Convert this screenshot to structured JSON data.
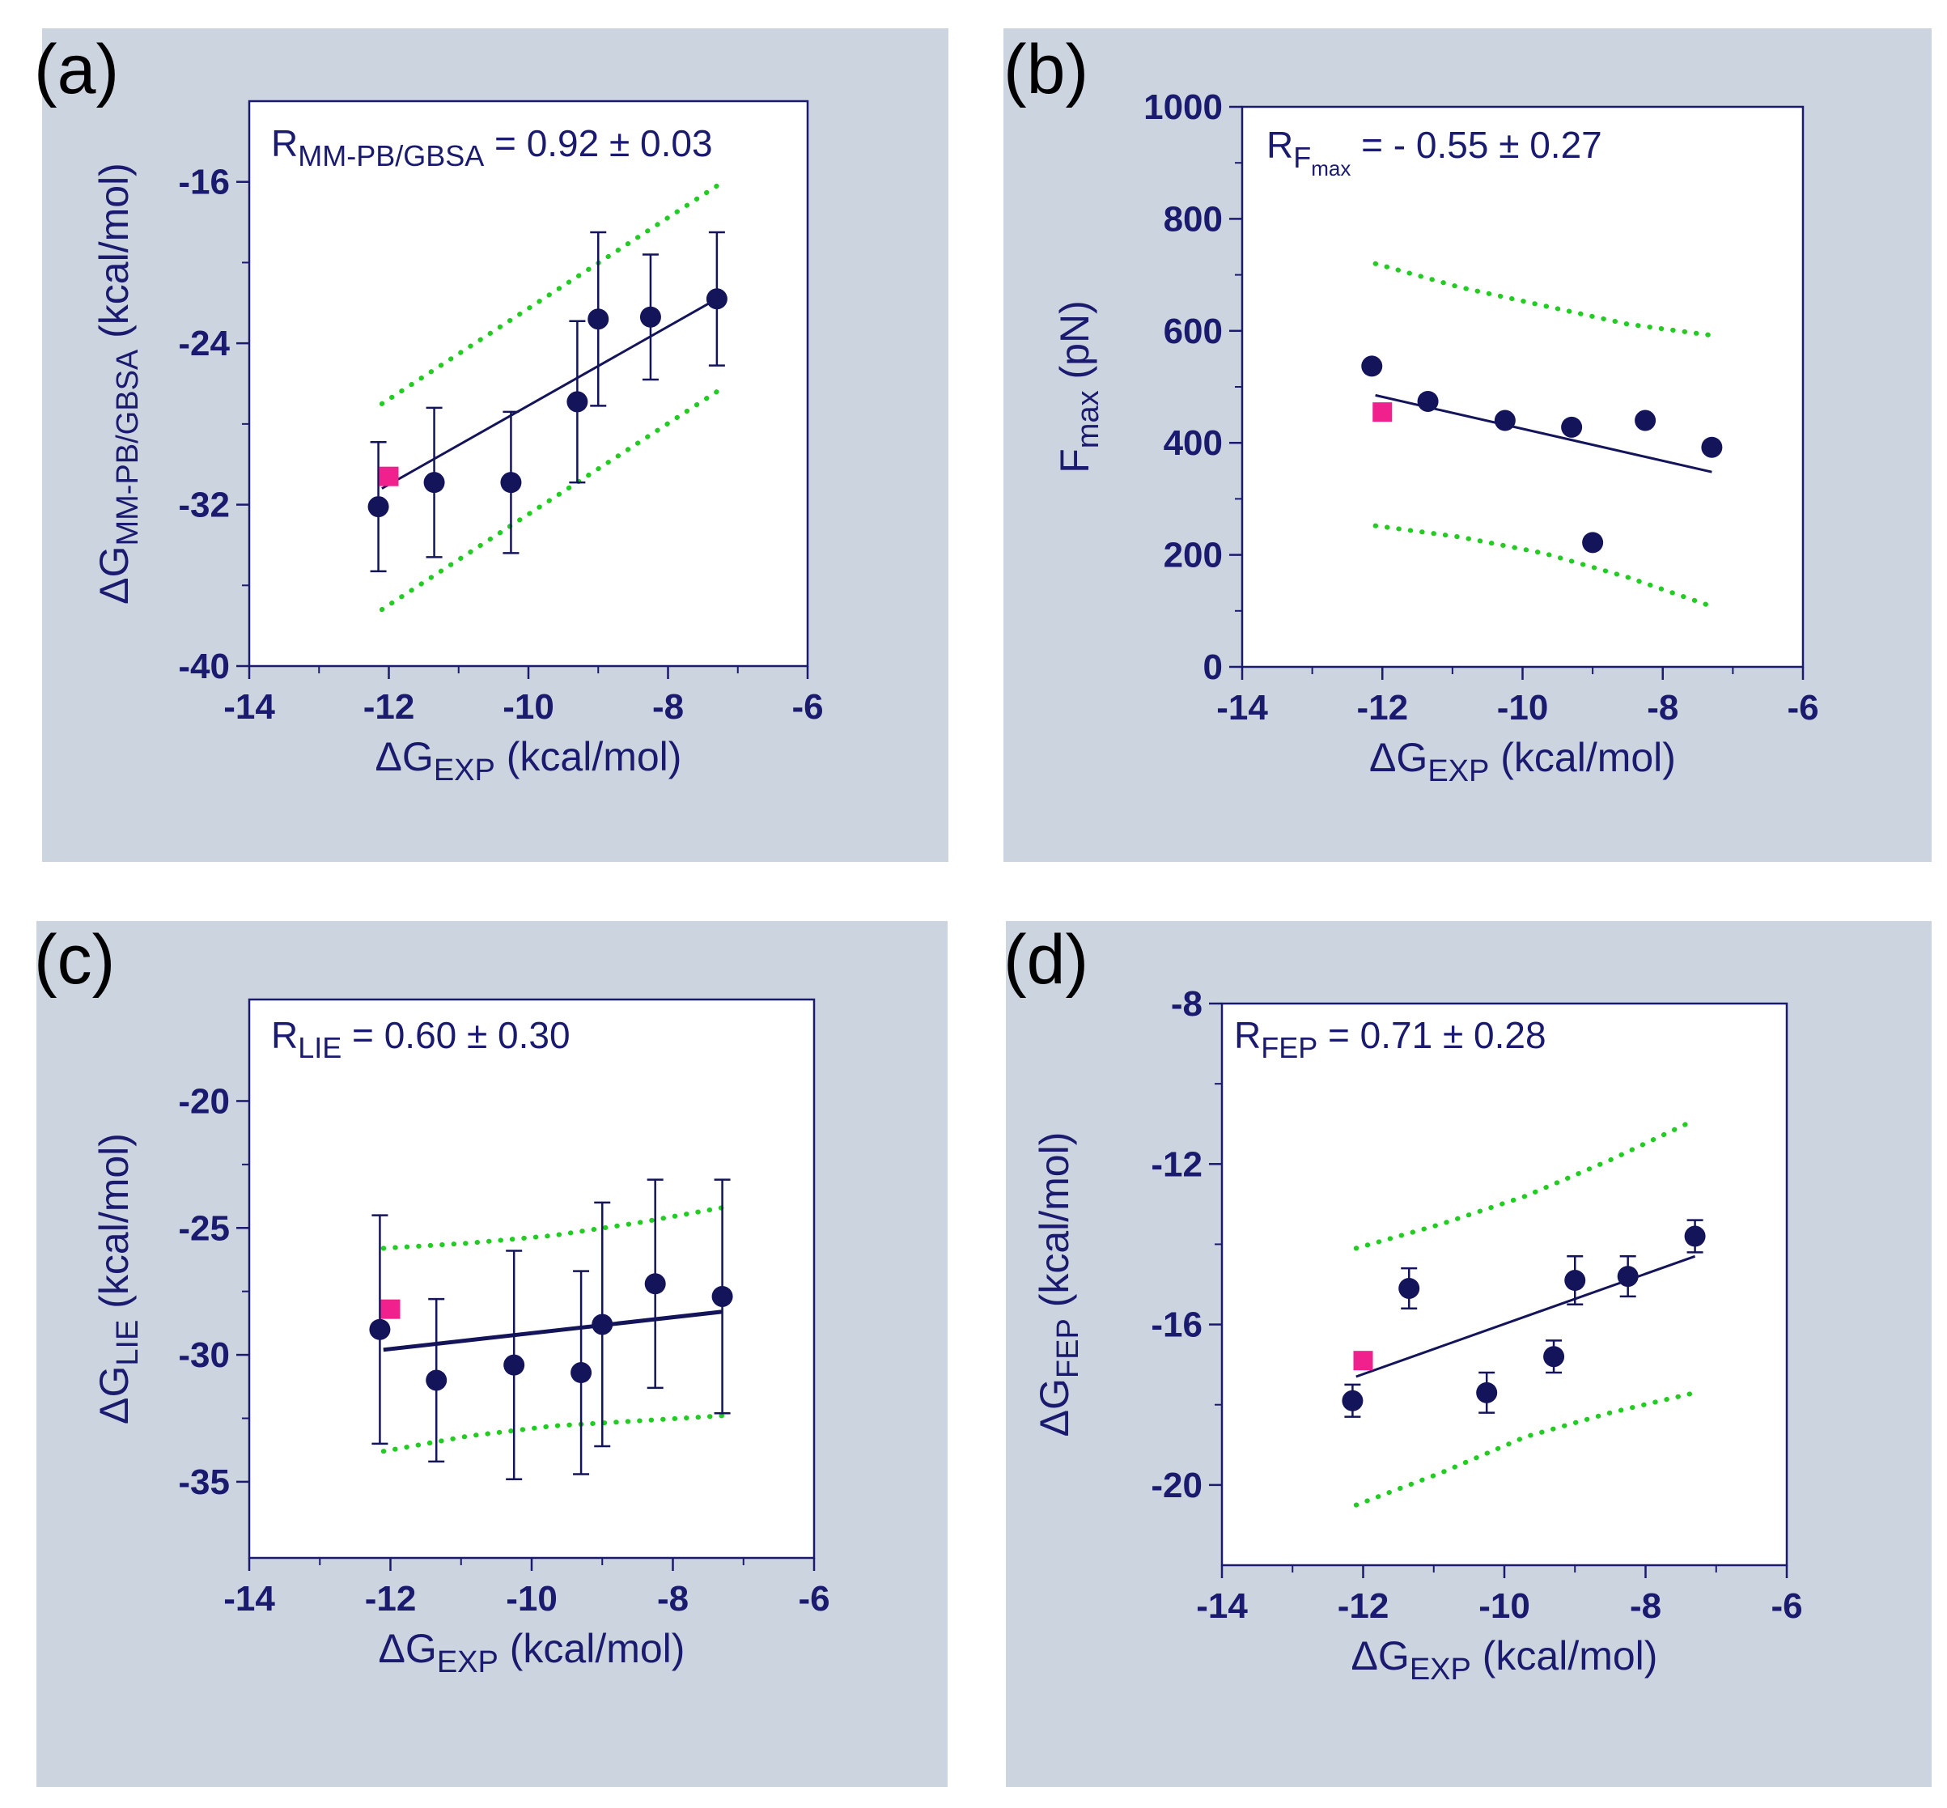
{
  "colors": {
    "panel_bg": "#ccd4e0",
    "plot_bg": "#ffffff",
    "axis": "#1a1a6e",
    "point": "#14145a",
    "highlight": "#f0208c",
    "band": "#22cc22"
  },
  "chart_data": [
    {
      "type": "scatter",
      "panel_label": "(a)",
      "xlabel": {
        "main": "ΔG",
        "sub": "EXP",
        "rest": " (kcal/mol)"
      },
      "ylabel": {
        "main": "ΔG",
        "sub": "MM-PB/GBSA",
        "rest": " (kcal/mol)"
      },
      "xlim": [
        -14,
        -6
      ],
      "ylim": [
        -40,
        -12
      ],
      "xticks": [
        -14,
        -12,
        -10,
        -8,
        -6
      ],
      "xtick_labels": [
        "-14",
        "-12",
        "-10",
        "-8",
        "-6"
      ],
      "yticks": [
        -40,
        -32,
        -24,
        -16
      ],
      "ytick_labels": [
        "-40",
        "-32",
        "-24",
        "-16"
      ],
      "annotation": {
        "main": "R",
        "sub": "MM-PB/GBSA",
        "rest": " = 0.92  ± 0.03"
      },
      "points": [
        {
          "x": -12.15,
          "y": -32.1,
          "err": 3.2
        },
        {
          "x": -11.35,
          "y": -30.9,
          "err": 3.7
        },
        {
          "x": -10.25,
          "y": -30.9,
          "err": 3.5
        },
        {
          "x": -9.3,
          "y": -26.9,
          "err": 4.0
        },
        {
          "x": -9.0,
          "y": -22.8,
          "err": 4.3
        },
        {
          "x": -8.25,
          "y": -22.7,
          "err": 3.1
        },
        {
          "x": -7.3,
          "y": -21.8,
          "err": 3.3
        }
      ],
      "highlight_point": {
        "x": -12.0,
        "y": -30.6
      },
      "fit_line": {
        "x": [
          -12.1,
          -7.3
        ],
        "y": [
          -31.2,
          -21.8
        ]
      },
      "band_upper": {
        "x": [
          -12.1,
          -7.3
        ],
        "y": [
          -27.0,
          -16.2
        ]
      },
      "band_lower": {
        "x": [
          -12.1,
          -7.3
        ],
        "y": [
          -37.2,
          -26.4
        ]
      }
    },
    {
      "type": "scatter",
      "panel_label": "(b)",
      "xlabel": {
        "main": "ΔG",
        "sub": "EXP",
        "rest": " (kcal/mol)"
      },
      "ylabel": {
        "main": "F",
        "sub": "max",
        "rest": " (pN)"
      },
      "xlim": [
        -14,
        -6
      ],
      "ylim": [
        0,
        1000
      ],
      "xticks": [
        -14,
        -12,
        -10,
        -8,
        -6
      ],
      "xtick_labels": [
        "-14",
        "-12",
        "-10",
        "-8",
        "-6"
      ],
      "yticks": [
        0,
        200,
        400,
        600,
        800,
        1000
      ],
      "ytick_labels": [
        "0",
        "200",
        "400",
        "600",
        "800",
        "1000"
      ],
      "annotation": {
        "main": "R",
        "sub": "F",
        "subsub": "max",
        "rest": " = - 0.55  ± 0.27"
      },
      "points": [
        {
          "x": -12.15,
          "y": 537
        },
        {
          "x": -11.35,
          "y": 474
        },
        {
          "x": -10.25,
          "y": 440
        },
        {
          "x": -9.3,
          "y": 428
        },
        {
          "x": -9.0,
          "y": 222
        },
        {
          "x": -8.25,
          "y": 440
        },
        {
          "x": -7.3,
          "y": 392
        }
      ],
      "highlight_point": {
        "x": -12.0,
        "y": 455
      },
      "fit_line": {
        "x": [
          -12.1,
          -7.3
        ],
        "y": [
          485,
          348
        ]
      },
      "band_upper": {
        "x": [
          -12.1,
          -10.9,
          -9.7,
          -8.5,
          -7.3
        ],
        "y": [
          720,
          678,
          645,
          612,
          592
        ]
      },
      "band_lower": {
        "x": [
          -12.1,
          -10.9,
          -9.7,
          -8.5,
          -7.3
        ],
        "y": [
          252,
          232,
          203,
          160,
          108
        ]
      }
    },
    {
      "type": "scatter",
      "panel_label": "(c)",
      "xlabel": {
        "main": "ΔG",
        "sub": "EXP",
        "rest": " (kcal/mol)"
      },
      "ylabel": {
        "main": "ΔG",
        "sub": "LIE",
        "rest": " (kcal/mol)"
      },
      "xlim": [
        -14,
        -6
      ],
      "ylim": [
        -38,
        -16
      ],
      "xticks": [
        -14,
        -12,
        -10,
        -8,
        -6
      ],
      "xtick_labels": [
        "-14",
        "-12",
        "-10",
        "-8",
        "-6"
      ],
      "yticks": [
        -35,
        -30,
        -25,
        -20
      ],
      "ytick_labels": [
        "-35",
        "-30",
        "-25",
        "-20"
      ],
      "annotation": {
        "main": "R",
        "sub": "LIE",
        "rest": " = 0.60  ± 0.30"
      },
      "points": [
        {
          "x": -12.15,
          "y": -29.0,
          "err": 4.5
        },
        {
          "x": -11.35,
          "y": -31.0,
          "err": 3.2
        },
        {
          "x": -10.25,
          "y": -30.4,
          "err": 4.5
        },
        {
          "x": -9.3,
          "y": -30.7,
          "err": 4.0
        },
        {
          "x": -9.0,
          "y": -28.8,
          "err": 4.8
        },
        {
          "x": -8.25,
          "y": -27.2,
          "err": 4.1
        },
        {
          "x": -7.3,
          "y": -27.7,
          "err": 4.6
        }
      ],
      "highlight_point": {
        "x": -12.0,
        "y": -28.2
      },
      "fit_line": {
        "x": [
          -12.1,
          -7.3
        ],
        "y": [
          -29.8,
          -28.3
        ]
      },
      "band_upper": {
        "x": [
          -12.1,
          -10.9,
          -9.7,
          -8.5,
          -7.3
        ],
        "y": [
          -25.8,
          -25.6,
          -25.3,
          -24.8,
          -24.2
        ]
      },
      "band_lower": {
        "x": [
          -12.1,
          -10.9,
          -9.7,
          -8.5,
          -7.3
        ],
        "y": [
          -33.8,
          -33.2,
          -32.8,
          -32.6,
          -32.4
        ]
      }
    },
    {
      "type": "scatter",
      "panel_label": "(d)",
      "xlabel": {
        "main": "ΔG",
        "sub": "EXP",
        "rest": " (kcal/mol)"
      },
      "ylabel": {
        "main": "ΔG",
        "sub": "FEP",
        "rest": " (kcal/mol)"
      },
      "xlim": [
        -14,
        -6
      ],
      "ylim": [
        -22,
        -8
      ],
      "xticks": [
        -14,
        -12,
        -10,
        -8,
        -6
      ],
      "xtick_labels": [
        "-14",
        "-12",
        "-10",
        "-8",
        "-6"
      ],
      "yticks": [
        -20,
        -16,
        -12,
        -8
      ],
      "ytick_labels": [
        "-20",
        "-16",
        "-12",
        "-8"
      ],
      "annotation": {
        "main": "R",
        "sub": "FEP",
        "rest": " = 0.71  ± 0.28"
      },
      "points": [
        {
          "x": -12.15,
          "y": -17.9,
          "err": 0.4
        },
        {
          "x": -11.35,
          "y": -15.1,
          "err": 0.5
        },
        {
          "x": -10.25,
          "y": -17.7,
          "err": 0.5
        },
        {
          "x": -9.3,
          "y": -16.8,
          "err": 0.4
        },
        {
          "x": -9.0,
          "y": -14.9,
          "err": 0.6
        },
        {
          "x": -8.25,
          "y": -14.8,
          "err": 0.5
        },
        {
          "x": -7.3,
          "y": -13.8,
          "err": 0.4
        }
      ],
      "highlight_point": {
        "x": -12.0,
        "y": -16.9
      },
      "fit_line": {
        "x": [
          -12.1,
          -7.3
        ],
        "y": [
          -17.3,
          -14.3
        ]
      },
      "band_upper": {
        "x": [
          -12.1,
          -10.9,
          -9.7,
          -8.5,
          -7.3
        ],
        "y": [
          -14.1,
          -13.5,
          -12.8,
          -11.9,
          -10.9
        ]
      },
      "band_lower": {
        "x": [
          -12.1,
          -10.9,
          -9.7,
          -8.5,
          -7.3
        ],
        "y": [
          -20.5,
          -19.7,
          -18.8,
          -18.2,
          -17.7
        ]
      }
    }
  ]
}
